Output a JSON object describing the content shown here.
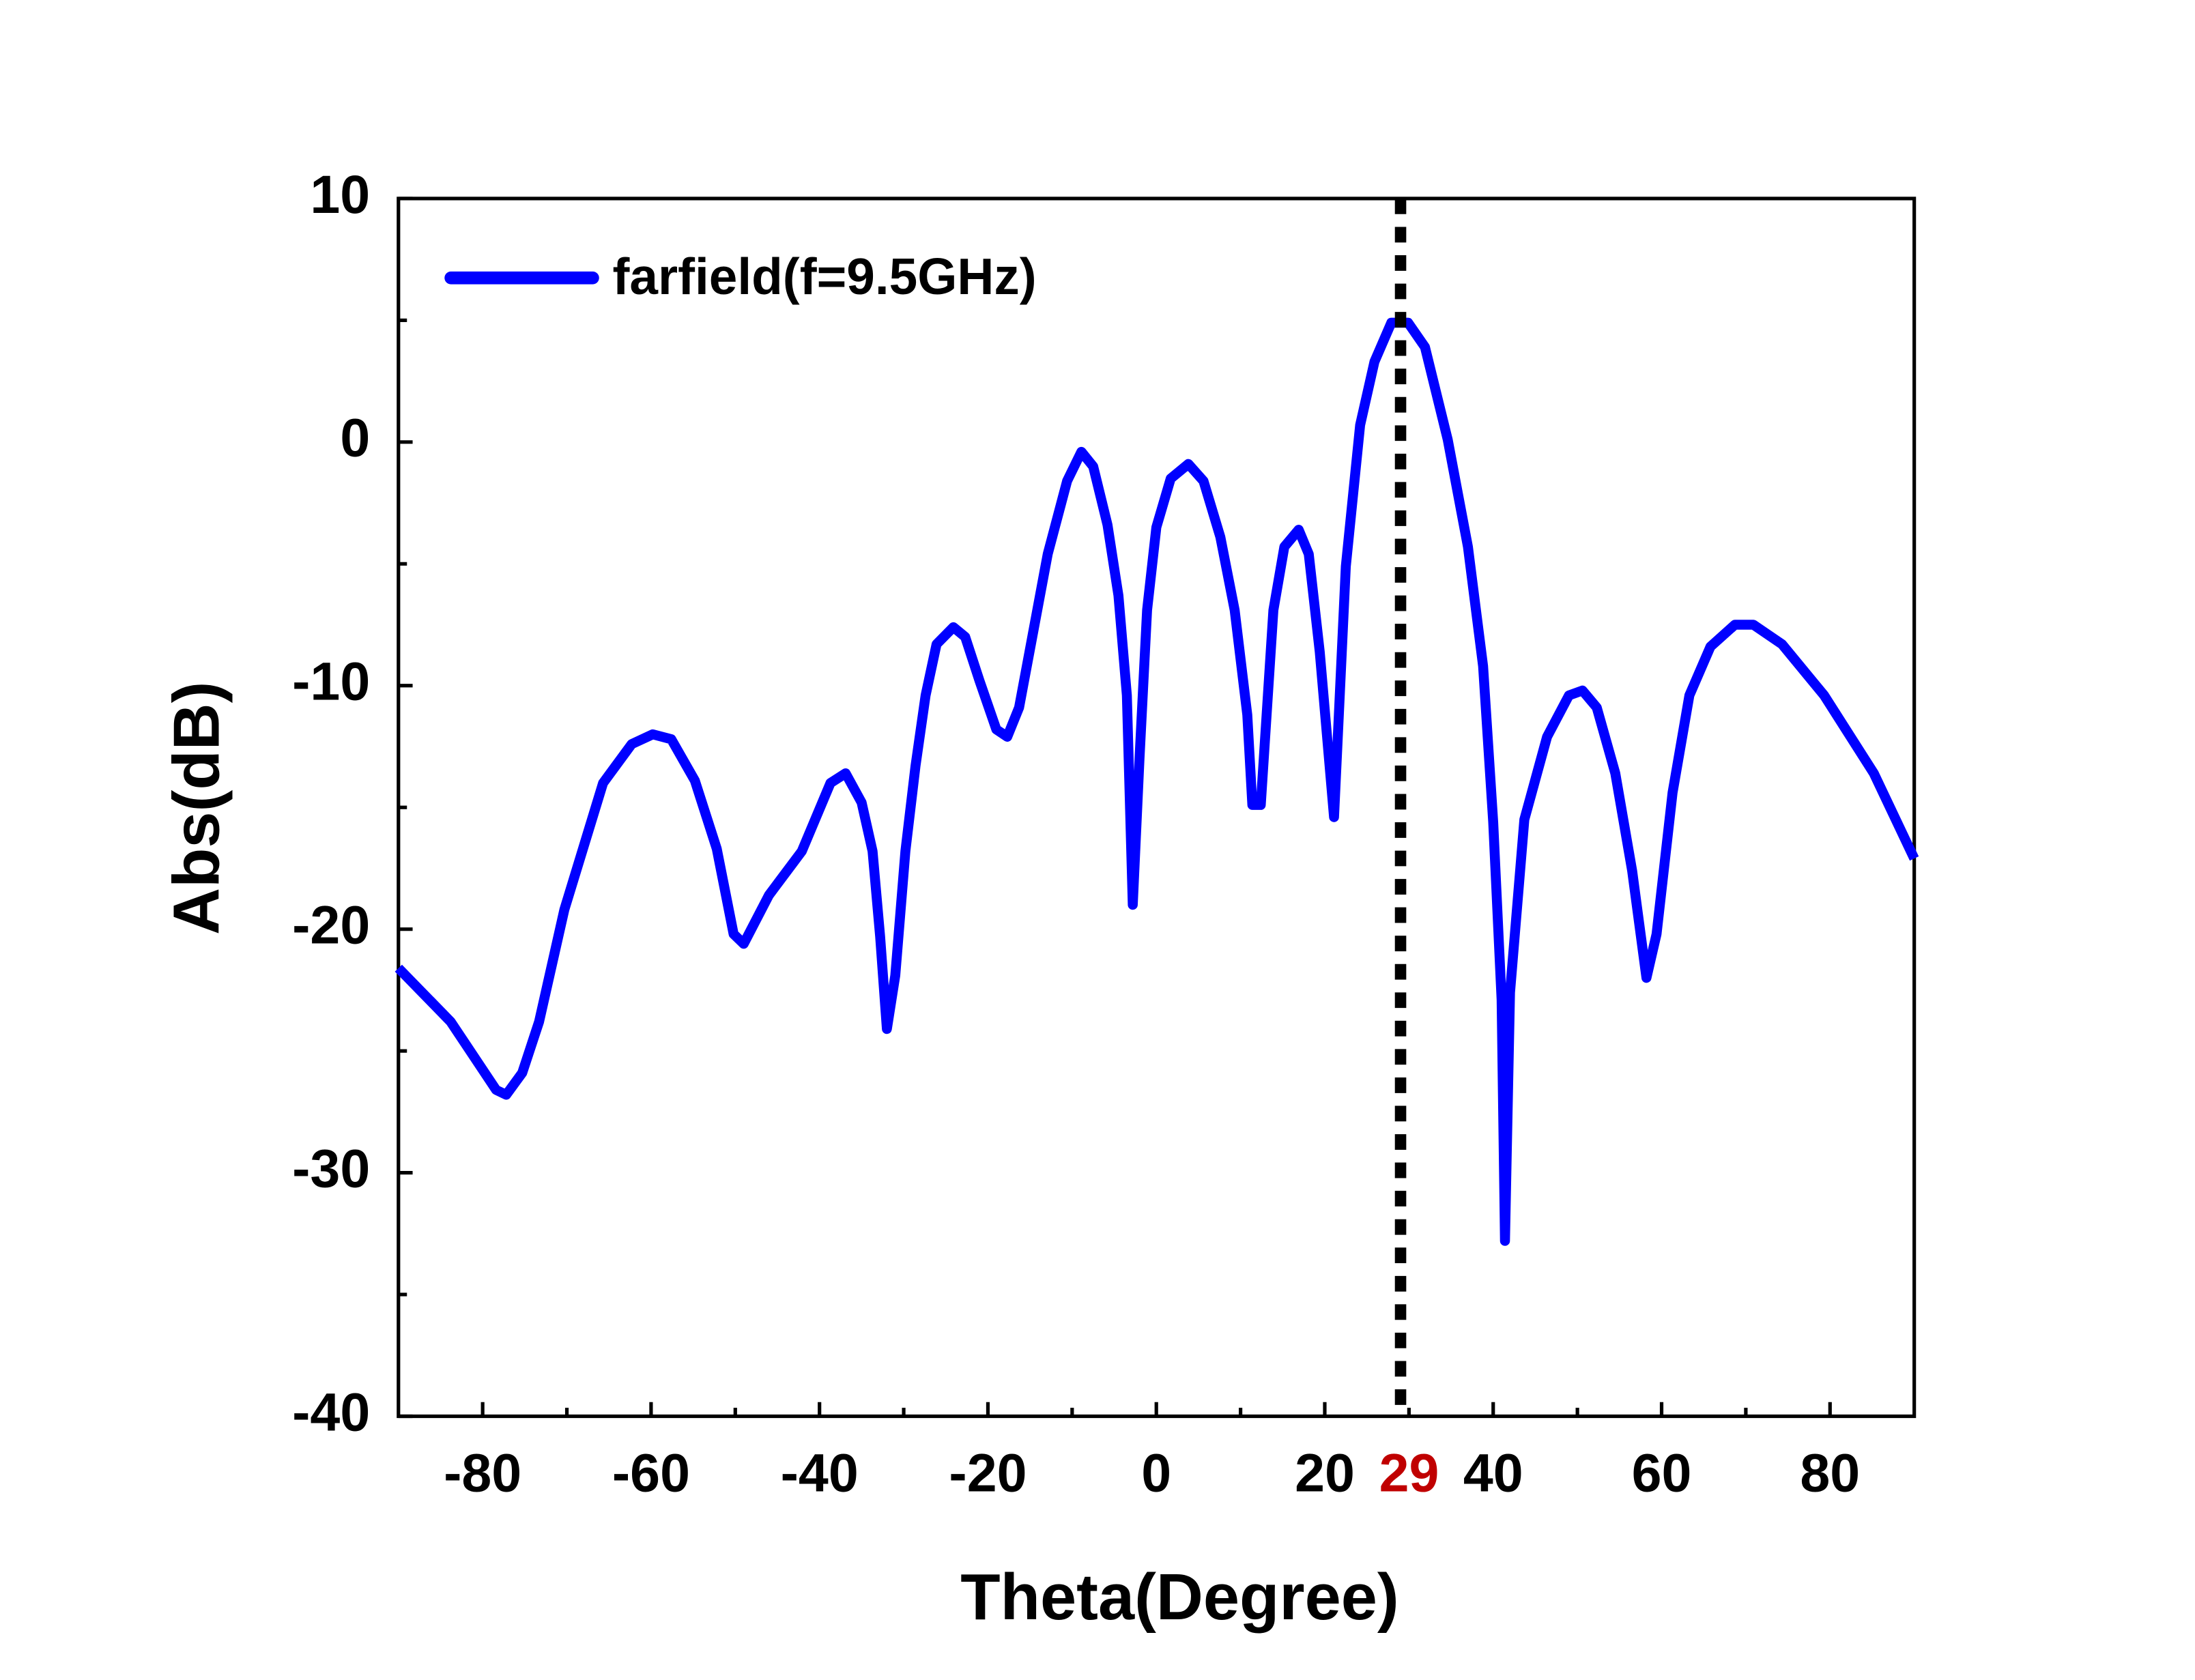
{
  "chart_data": {
    "type": "line",
    "x_label": "Theta(Degree)",
    "y_label": "Abs(dB)",
    "x": [
      -90,
      -83.8,
      -78.4,
      -77.2,
      -75.3,
      -73.3,
      -70.3,
      -65.7,
      -62.3,
      -59.8,
      -57.6,
      -54.8,
      -52.2,
      -50.2,
      -49.0,
      -46.0,
      -42.1,
      -38.7,
      -36.9,
      -35.0,
      -33.7,
      -32.8,
      -32.0,
      -31.0,
      -29.8,
      -28.6,
      -27.4,
      -26.1,
      -24.1,
      -22.7,
      -21.0,
      -19.0,
      -17.7,
      -16.3,
      -12.9,
      -10.6,
      -8.9,
      -7.5,
      -5.8,
      -4.5,
      -3.5,
      -2.8,
      -2.0,
      -1.1,
      0.0,
      1.7,
      3.8,
      5.6,
      7.6,
      9.3,
      10.8,
      11.4,
      12.4,
      13.9,
      15.2,
      16.9,
      18.1,
      19.4,
      21.1,
      22.5,
      24.2,
      25.9,
      27.9,
      29.9,
      31.9,
      34.6,
      37.0,
      38.8,
      40.0,
      41.0,
      41.4,
      42.0,
      43.7,
      46.4,
      49.0,
      50.6,
      52.3,
      54.5,
      56.5,
      58.2,
      59.4,
      61.3,
      63.3,
      65.8,
      68.7,
      70.9,
      74.3,
      79.3,
      85.2,
      90
    ],
    "series": [
      {
        "name": "farfield(f=9.5GHz)",
        "color": "#0000ff",
        "values": [
          -21.6,
          -23.8,
          -26.6,
          -26.8,
          -25.9,
          -23.8,
          -19.2,
          -14.0,
          -12.4,
          -12.0,
          -12.2,
          -13.9,
          -16.7,
          -20.2,
          -20.6,
          -18.6,
          -16.8,
          -14.0,
          -13.6,
          -14.8,
          -16.8,
          -20.3,
          -24.1,
          -21.9,
          -16.8,
          -13.3,
          -10.4,
          -8.3,
          -7.6,
          -8.0,
          -9.8,
          -11.8,
          -12.1,
          -10.9,
          -4.6,
          -1.6,
          -0.4,
          -1.0,
          -3.4,
          -6.3,
          -10.4,
          -19.0,
          -13.0,
          -6.9,
          -3.5,
          -1.5,
          -0.9,
          -1.6,
          -3.9,
          -6.9,
          -11.2,
          -14.9,
          -14.9,
          -6.9,
          -4.3,
          -3.6,
          -4.6,
          -8.6,
          -15.4,
          -5.1,
          0.7,
          3.3,
          4.9,
          4.9,
          3.9,
          0.1,
          -4.3,
          -9.2,
          -15.6,
          -22.9,
          -32.8,
          -22.6,
          -15.5,
          -12.1,
          -10.4,
          -10.2,
          -10.9,
          -13.6,
          -17.6,
          -22.0,
          -20.2,
          -14.4,
          -10.4,
          -8.4,
          -7.5,
          -7.5,
          -8.3,
          -10.4,
          -13.6,
          -17.1
        ]
      }
    ],
    "xlim": [
      -90,
      90
    ],
    "xticks": [
      -80,
      -60,
      -40,
      -20,
      0,
      20,
      40,
      60,
      80
    ],
    "xminorticks": [
      -70,
      -50,
      -30,
      -10,
      10,
      30,
      50,
      70
    ],
    "ylim": [
      -40,
      10
    ],
    "yticks": [
      -40,
      -30,
      -20,
      -10,
      0,
      10
    ],
    "yminorticks": [
      -35,
      -25,
      -15,
      -5,
      5
    ],
    "marker": {
      "x": 29,
      "color": "#c00000"
    },
    "legend": "upper left"
  }
}
